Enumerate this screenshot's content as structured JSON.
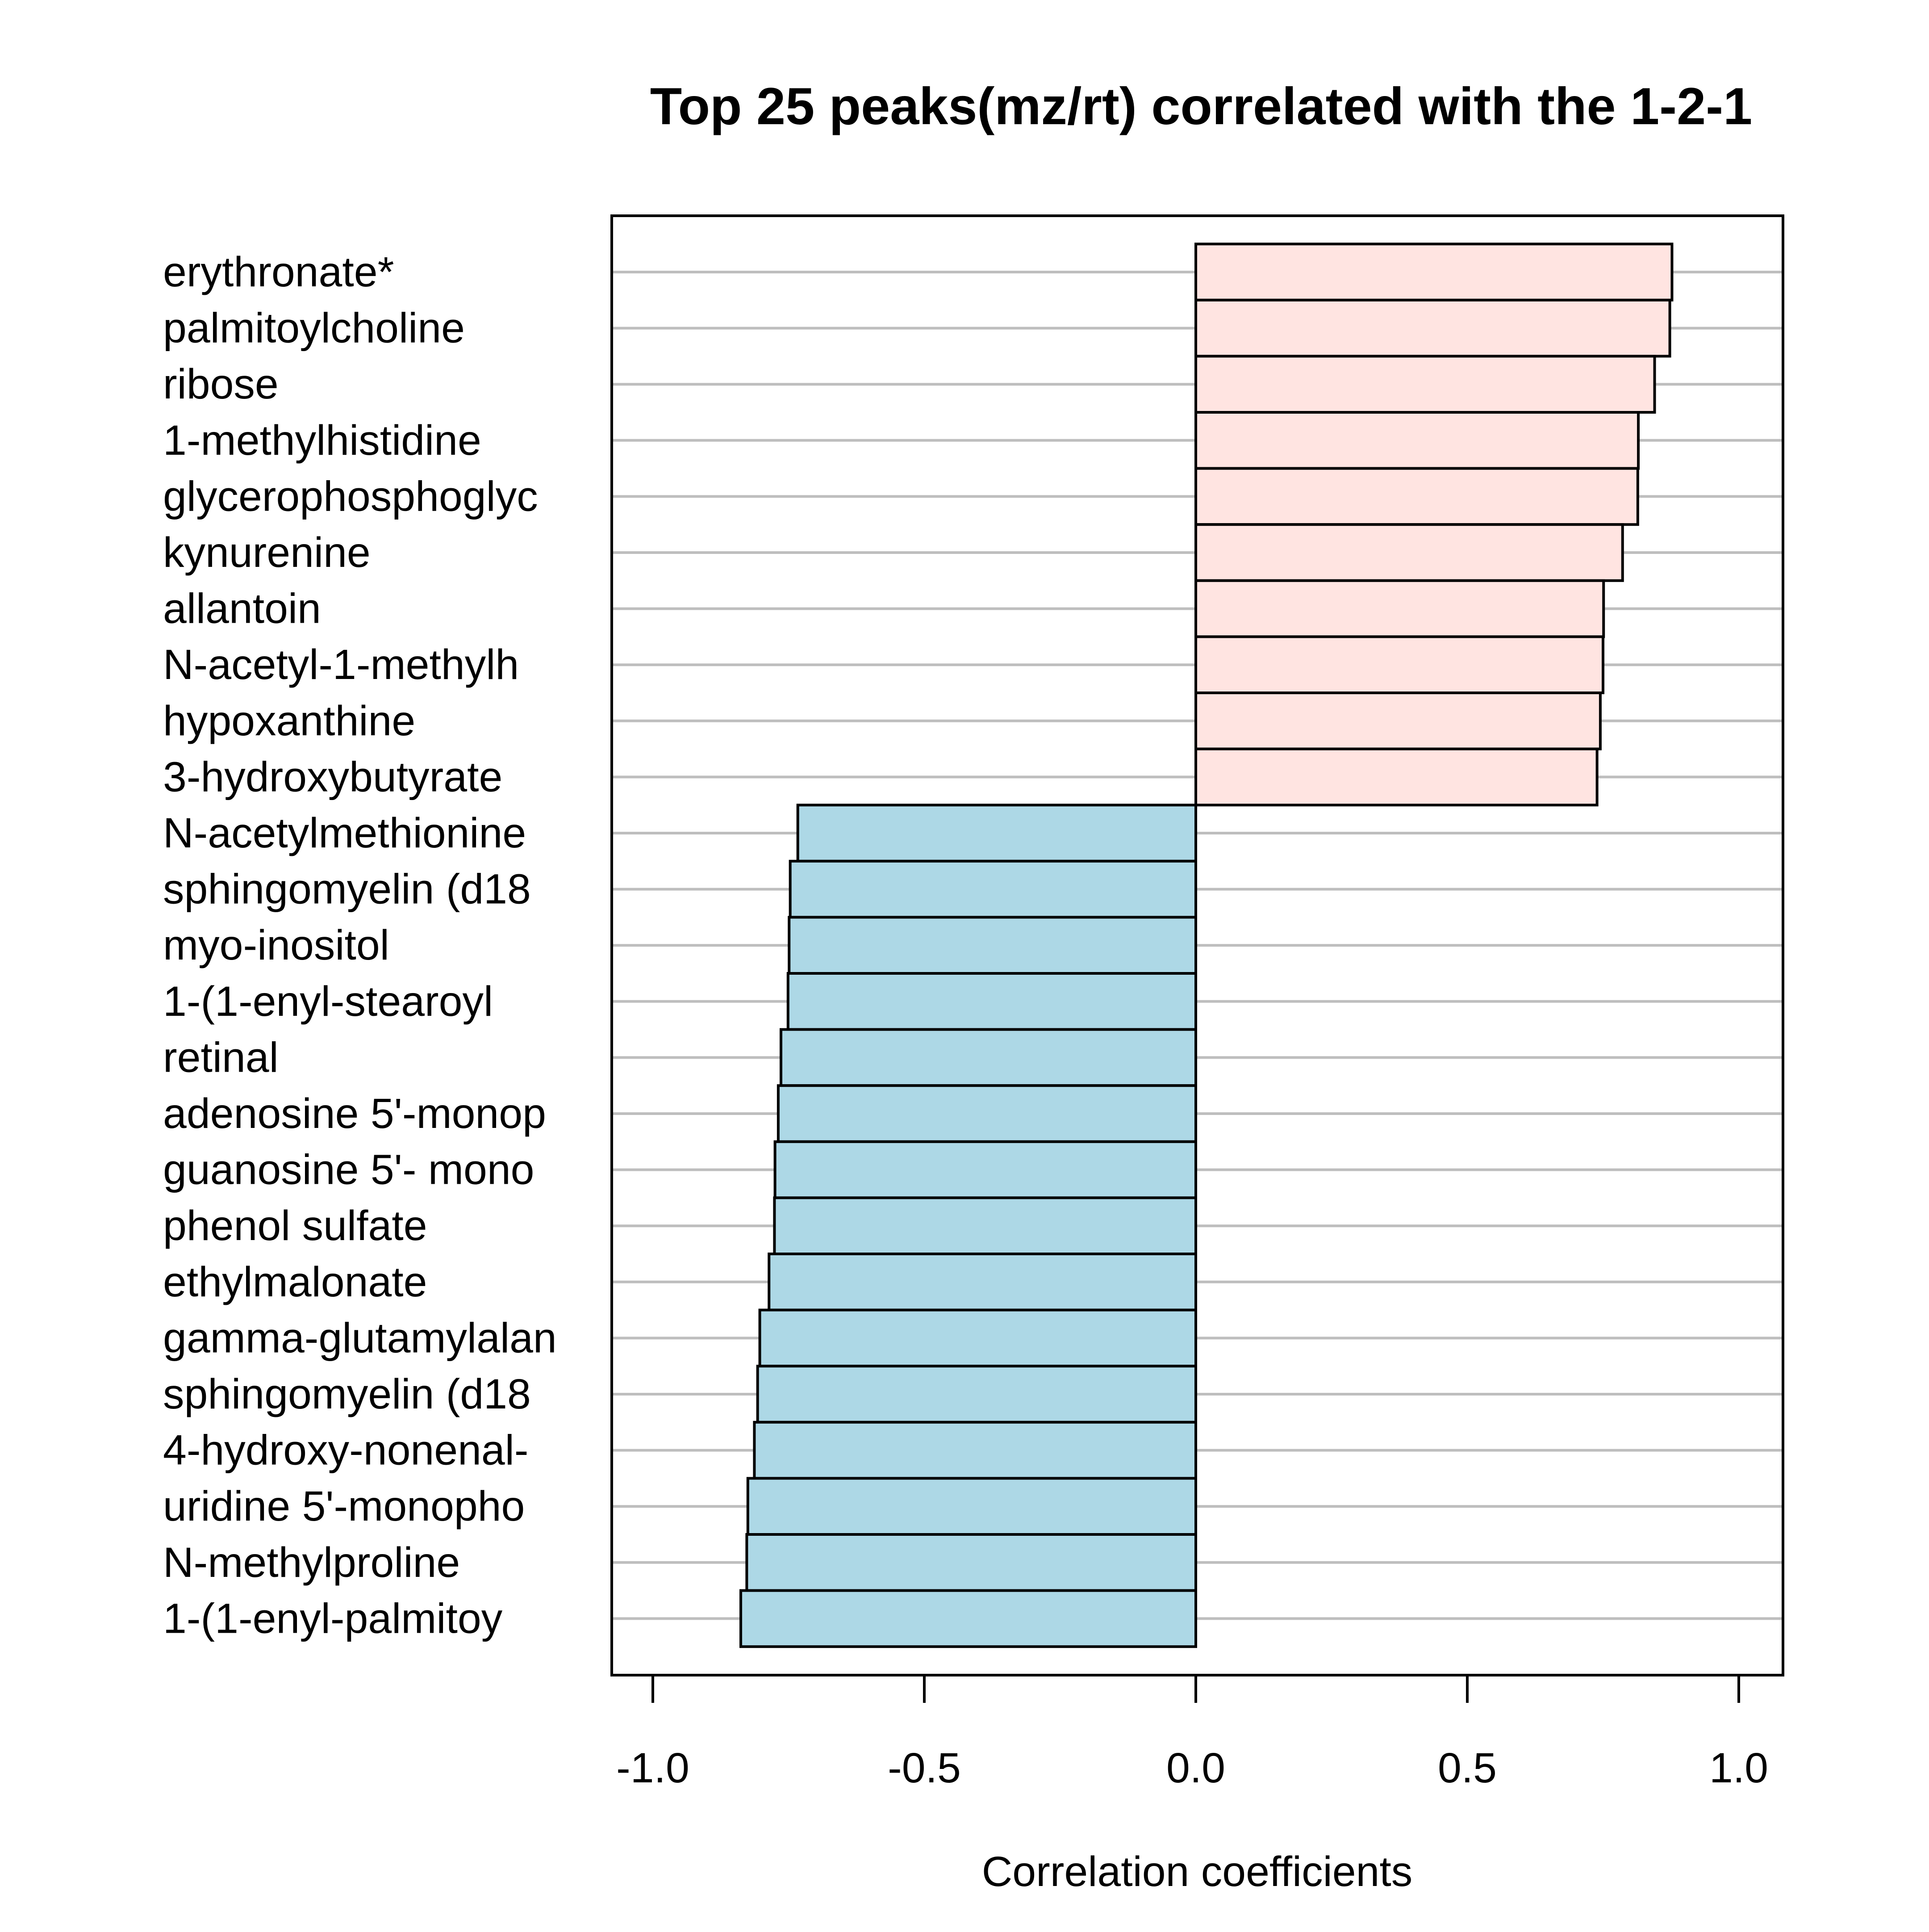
{
  "chart_data": {
    "type": "bar",
    "orientation": "horizontal",
    "title": "Top 25 peaks(mz/rt) correlated with the 1-2-1",
    "xlabel": "Correlation coefficients",
    "ylabel": "",
    "xlim": [
      -1.08,
      1.08
    ],
    "xticks": [
      -1.0,
      -0.5,
      0.0,
      0.5,
      1.0
    ],
    "xtick_labels": [
      "-1.0",
      "-0.5",
      "0.0",
      "0.5",
      "1.0"
    ],
    "grid": "horizontal",
    "categories": [
      "erythronate*",
      "palmitoylcholine",
      "ribose",
      "1-methylhistidine",
      "glycerophosphoglyc",
      "kynurenine",
      "allantoin",
      "N-acetyl-1-methylh",
      "hypoxanthine",
      "3-hydroxybutyrate",
      "N-acetylmethionine",
      "sphingomyelin (d18",
      "myo-inositol",
      "1-(1-enyl-stearoyl",
      "retinal",
      "adenosine 5'-monop",
      "guanosine 5'- mono",
      "phenol sulfate",
      "ethylmalonate",
      "gamma-glutamylalan",
      "sphingomyelin (d18",
      "4-hydroxy-nonenal-",
      "uridine 5'-monopho",
      "N-methylproline",
      "1-(1-enyl-palmitoy"
    ],
    "values": [
      0.877,
      0.873,
      0.845,
      0.815,
      0.814,
      0.786,
      0.751,
      0.75,
      0.745,
      0.739,
      -0.733,
      -0.747,
      -0.749,
      -0.751,
      -0.764,
      -0.769,
      -0.775,
      -0.776,
      -0.786,
      -0.803,
      -0.807,
      -0.813,
      -0.825,
      -0.827,
      -0.838
    ],
    "colors": {
      "positive": "#ffe4e1",
      "negative": "#add8e6",
      "bar_edge": "#000000",
      "gridline": "#bebebe",
      "axis": "#000000"
    }
  }
}
